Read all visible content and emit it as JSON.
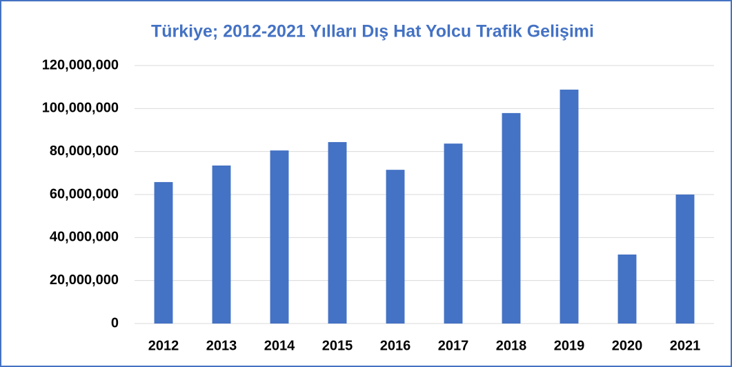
{
  "chart_data": {
    "type": "bar",
    "title": "Türkiye; 2012-2021 Yılları Dış Hat Yolcu Trafik Gelişimi",
    "categories": [
      "2012",
      "2013",
      "2014",
      "2015",
      "2016",
      "2017",
      "2018",
      "2019",
      "2020",
      "2021"
    ],
    "values": [
      65800000,
      73500000,
      80500000,
      84400000,
      71500000,
      83700000,
      97900000,
      108800000,
      32100000,
      60000000
    ],
    "color": "#4472c4",
    "ylim": [
      0,
      120000000
    ],
    "yticks": [
      0,
      {
        "value": 20000000,
        "label": "20,000,000"
      },
      {
        "value": 40000000,
        "label": "40,000,000"
      },
      {
        "value": 60000000,
        "label": "60,000,000"
      },
      {
        "value": 80000000,
        "label": "80,000,000"
      },
      {
        "value": 100000000,
        "label": "100,000,000"
      },
      {
        "value": 120000000,
        "label": "120,000,000"
      }
    ],
    "grid": true
  }
}
